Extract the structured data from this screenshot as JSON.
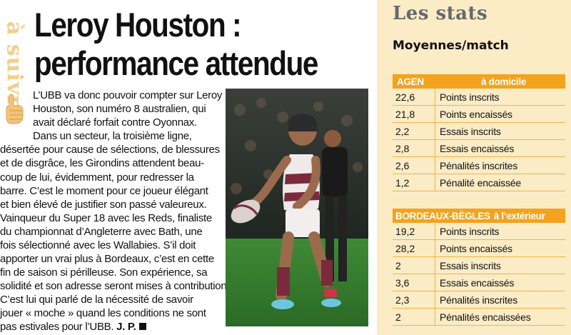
{
  "sidebar_label": "à suivre",
  "article": {
    "headline": [
      "Leroy Houston :",
      "performance attendue"
    ],
    "body_lines": [
      "L’UBB va donc pouvoir compter sur Leroy",
      "Houston, son numéro 8 australien, qui",
      "avait déclaré forfait contre Oyonnax.",
      "Dans un secteur, la troisième ligne,",
      "désertée pour cause de sélections, de blessures",
      "et de disgrâce, les Girondins attendent beau-",
      "coup de lui, évidemment, pour redresser la",
      "barre. C’est le moment pour ce joueur élégant",
      "et bien élevé de justifier son passé valeureux.",
      "Vainqueur du Super 18 avec les Reds, finaliste",
      "du championnat d’Angleterre avec Bath, une",
      "fois sélectionné avec les Wallabies. S’il doit",
      "apporter un vrai plus à Bordeaux, c’est en cette",
      "fin de saison si périlleuse. Son expérience, sa",
      "solidité et son adresse seront mises à contribution.",
      "C’est lui qui parlé de la nécessité de savoir",
      "jouer « moche » quand les conditions ne sont",
      "pas estivales pour l’UBB."
    ],
    "signature": "J. P."
  },
  "stats": {
    "title": "Les stats",
    "subtitle": "Moyennes/match",
    "tables": [
      {
        "header_team": "AGEN",
        "header_context": "à domicile",
        "rows": [
          {
            "value": "22,6",
            "label": "Points inscrits"
          },
          {
            "value": "21,8",
            "label": "Points encaissés"
          },
          {
            "value": "2,2",
            "label": "Essais inscrits"
          },
          {
            "value": "2,8",
            "label": "Essais encaissés"
          },
          {
            "value": "2,6",
            "label": "Pénalités inscrites"
          },
          {
            "value": "1,2",
            "label": "Pénalité encaissée"
          }
        ]
      },
      {
        "header_team": "BORDEAUX-BÈGLES",
        "header_context": "à l’extérieur",
        "rows": [
          {
            "value": "19,2",
            "label": "Points inscrits"
          },
          {
            "value": "28,2",
            "label": "Points encaissés"
          },
          {
            "value": "2",
            "label": "Essais inscrits"
          },
          {
            "value": "3,6",
            "label": "Essais encaissés"
          },
          {
            "value": "2,3",
            "label": "Pénalités inscrites"
          },
          {
            "value": "2",
            "label": "Pénalités encaissées"
          }
        ]
      }
    ]
  },
  "colors": {
    "accent_orange": "#f3a31d",
    "panel_background": "#fbecc6",
    "sidebar_text": "#f3cf86"
  }
}
